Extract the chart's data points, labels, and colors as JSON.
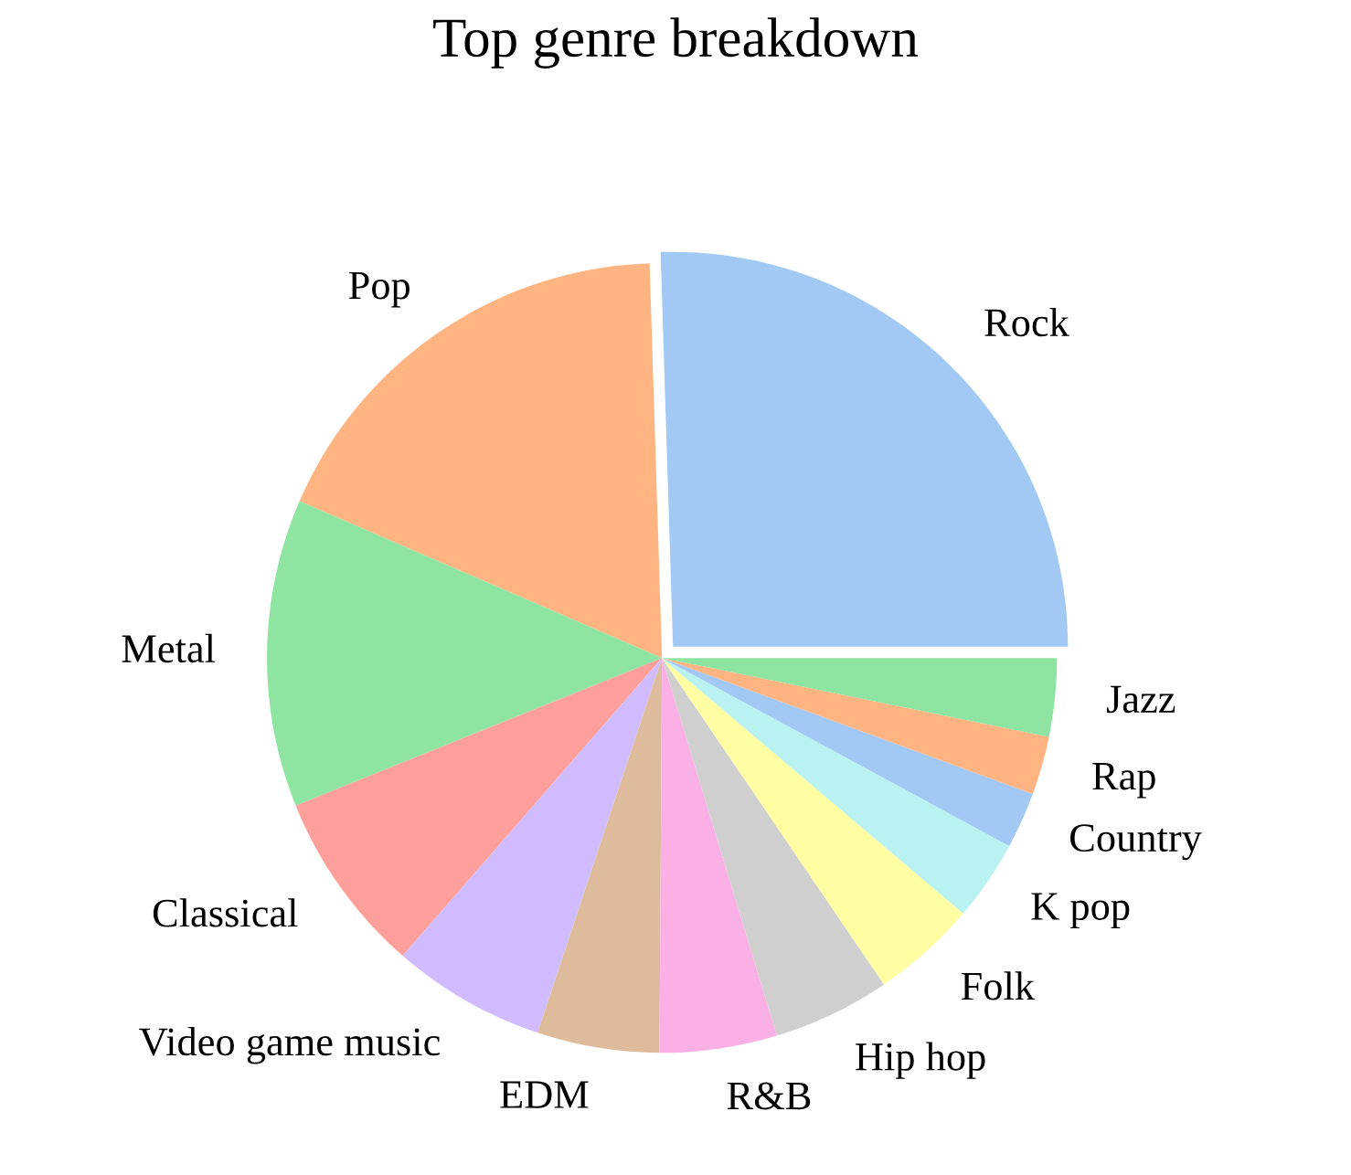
{
  "chart_data": {
    "type": "pie",
    "title": "Top genre breakdown",
    "categories": [
      "Rock",
      "Pop",
      "Metal",
      "Classical",
      "Video game music",
      "EDM",
      "R&B",
      "Hip hop",
      "Folk",
      "K pop",
      "Country",
      "Rap",
      "Jazz"
    ],
    "values": [
      25.5,
      18,
      12.6,
      7.5,
      6.3,
      5,
      4.8,
      4.8,
      4.3,
      3.3,
      2.3,
      2.4,
      3.2
    ],
    "colors": [
      "#a1c9f4",
      "#ffb482",
      "#8de5a1",
      "#ff9f9b",
      "#d0bbff",
      "#debb9b",
      "#fab0e4",
      "#cfcfcf",
      "#fffea3",
      "#b9f2f0",
      "#a1c9f4",
      "#ffb482",
      "#8de5a1"
    ]
  }
}
